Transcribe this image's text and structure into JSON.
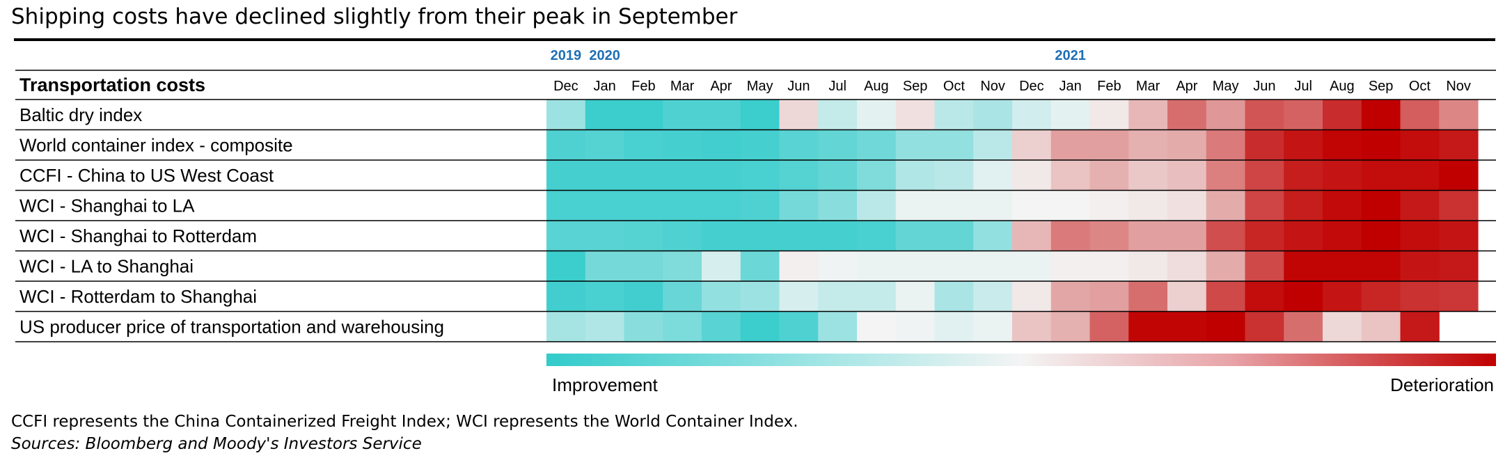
{
  "title": "Shipping costs have declined slightly from their peak in September",
  "chart_data": {
    "type": "heatmap",
    "header_label": "Transportation costs",
    "year_labels": [
      {
        "label": "2019",
        "month_index": 0
      },
      {
        "label": "2020",
        "month_index": 1
      },
      {
        "label": "2021",
        "month_index": 13
      }
    ],
    "months": [
      "Dec",
      "Jan",
      "Feb",
      "Mar",
      "Apr",
      "May",
      "Jun",
      "Jul",
      "Aug",
      "Sep",
      "Oct",
      "Nov",
      "Dec",
      "Jan",
      "Feb",
      "Mar",
      "Apr",
      "May",
      "Jun",
      "Jul",
      "Aug",
      "Sep",
      "Oct",
      "Nov"
    ],
    "scale": {
      "min": -1,
      "max": 1,
      "low_label": "Improvement",
      "high_label": "Deterioration",
      "low_color": "#32cbcb",
      "mid_color": "#f4f4f4",
      "high_color": "#c00000"
    },
    "rows": [
      {
        "label": "Baltic dry index",
        "values": [
          -0.45,
          -0.95,
          -0.95,
          -0.85,
          -0.85,
          -0.95,
          0.12,
          -0.25,
          -0.08,
          0.08,
          -0.3,
          -0.38,
          -0.18,
          -0.08,
          0.05,
          0.25,
          0.55,
          0.38,
          0.65,
          0.6,
          0.82,
          1.0,
          0.62,
          0.45
        ]
      },
      {
        "label": "World container index - composite",
        "values": [
          -0.85,
          -0.82,
          -0.88,
          -0.9,
          -0.92,
          -0.9,
          -0.8,
          -0.75,
          -0.68,
          -0.5,
          -0.5,
          -0.3,
          0.15,
          0.35,
          0.35,
          0.28,
          0.3,
          0.5,
          0.82,
          0.92,
          0.98,
          1.0,
          0.95,
          0.9
        ]
      },
      {
        "label": "CCFI - China to US West Coast",
        "values": [
          -0.9,
          -0.9,
          -0.9,
          -0.9,
          -0.9,
          -0.88,
          -0.82,
          -0.75,
          -0.6,
          -0.35,
          -0.3,
          -0.1,
          0.05,
          0.2,
          0.28,
          0.18,
          0.22,
          0.48,
          0.72,
          0.88,
          0.92,
          0.95,
          0.95,
          1.0
        ]
      },
      {
        "label": "WCI - Shanghai to LA",
        "values": [
          -0.88,
          -0.88,
          -0.88,
          -0.88,
          -0.88,
          -0.85,
          -0.65,
          -0.55,
          -0.3,
          -0.05,
          -0.05,
          -0.05,
          0.0,
          0.0,
          0.02,
          0.05,
          0.08,
          0.3,
          0.72,
          0.88,
          0.96,
          1.0,
          0.9,
          0.8
        ]
      },
      {
        "label": "WCI - Shanghai to Rotterdam",
        "values": [
          -0.8,
          -0.8,
          -0.82,
          -0.85,
          -0.9,
          -0.9,
          -0.9,
          -0.9,
          -0.88,
          -0.75,
          -0.75,
          -0.5,
          0.25,
          0.5,
          0.45,
          0.35,
          0.35,
          0.68,
          0.85,
          0.92,
          0.96,
          1.0,
          0.95,
          0.92
        ]
      },
      {
        "label": "WCI - LA to Shanghai",
        "values": [
          -0.95,
          -0.65,
          -0.65,
          -0.6,
          -0.15,
          -0.7,
          0.02,
          -0.02,
          -0.05,
          -0.05,
          -0.05,
          -0.05,
          -0.05,
          0.02,
          0.02,
          0.05,
          0.1,
          0.3,
          0.7,
          0.98,
          0.98,
          0.98,
          0.92,
          0.9
        ]
      },
      {
        "label": "WCI - Rotterdam to Shanghai",
        "values": [
          -0.92,
          -0.88,
          -0.92,
          -0.72,
          -0.5,
          -0.45,
          -0.15,
          -0.25,
          -0.25,
          -0.05,
          -0.38,
          -0.22,
          0.05,
          0.32,
          0.35,
          0.55,
          0.15,
          0.7,
          0.95,
          1.0,
          0.92,
          0.85,
          0.8,
          0.78
        ]
      },
      {
        "label": "US producer price of transportation and warehousing",
        "values": [
          -0.4,
          -0.35,
          -0.55,
          -0.62,
          -0.8,
          -0.95,
          -0.85,
          -0.45,
          0.0,
          -0.02,
          -0.1,
          -0.05,
          0.2,
          0.28,
          0.6,
          0.98,
          0.98,
          1.0,
          0.8,
          0.55,
          0.12,
          0.2,
          0.9,
          null
        ]
      }
    ]
  },
  "footnote": "CCFI represents the China Containerized Freight Index; WCI represents the World Container Index.",
  "source": "Sources: Bloomberg and Moody's Investors Service"
}
